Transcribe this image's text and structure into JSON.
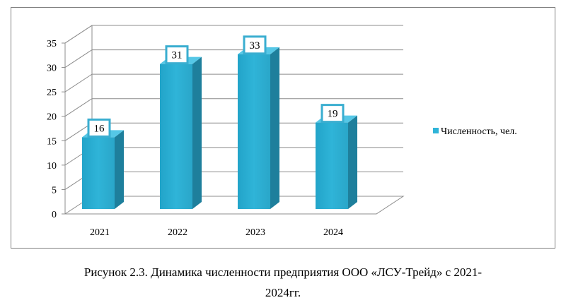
{
  "chart_data": {
    "type": "bar",
    "categories": [
      "2021",
      "2022",
      "2023",
      "2024"
    ],
    "series": [
      {
        "name": "Численность, чел.",
        "values": [
          16,
          31,
          33,
          19
        ]
      }
    ],
    "ylim": [
      0,
      35
    ],
    "yticks": [
      "0",
      "5",
      "10",
      "15",
      "20",
      "25",
      "30",
      "35"
    ],
    "grid": true,
    "legend_position": "right",
    "style": "3d-columns",
    "colors": {
      "bar": "#2fb4d8",
      "bar_side": "#1e7f9c",
      "bar_top": "#55c7e6",
      "label_border": "#3aaed0",
      "grid": "#8c8c8c"
    }
  },
  "caption": {
    "line1": "Рисунок 2.3. Динамика численности предприятия ООО «ЛСУ-Трейд»  с 2021-",
    "line2": "2024гг."
  }
}
